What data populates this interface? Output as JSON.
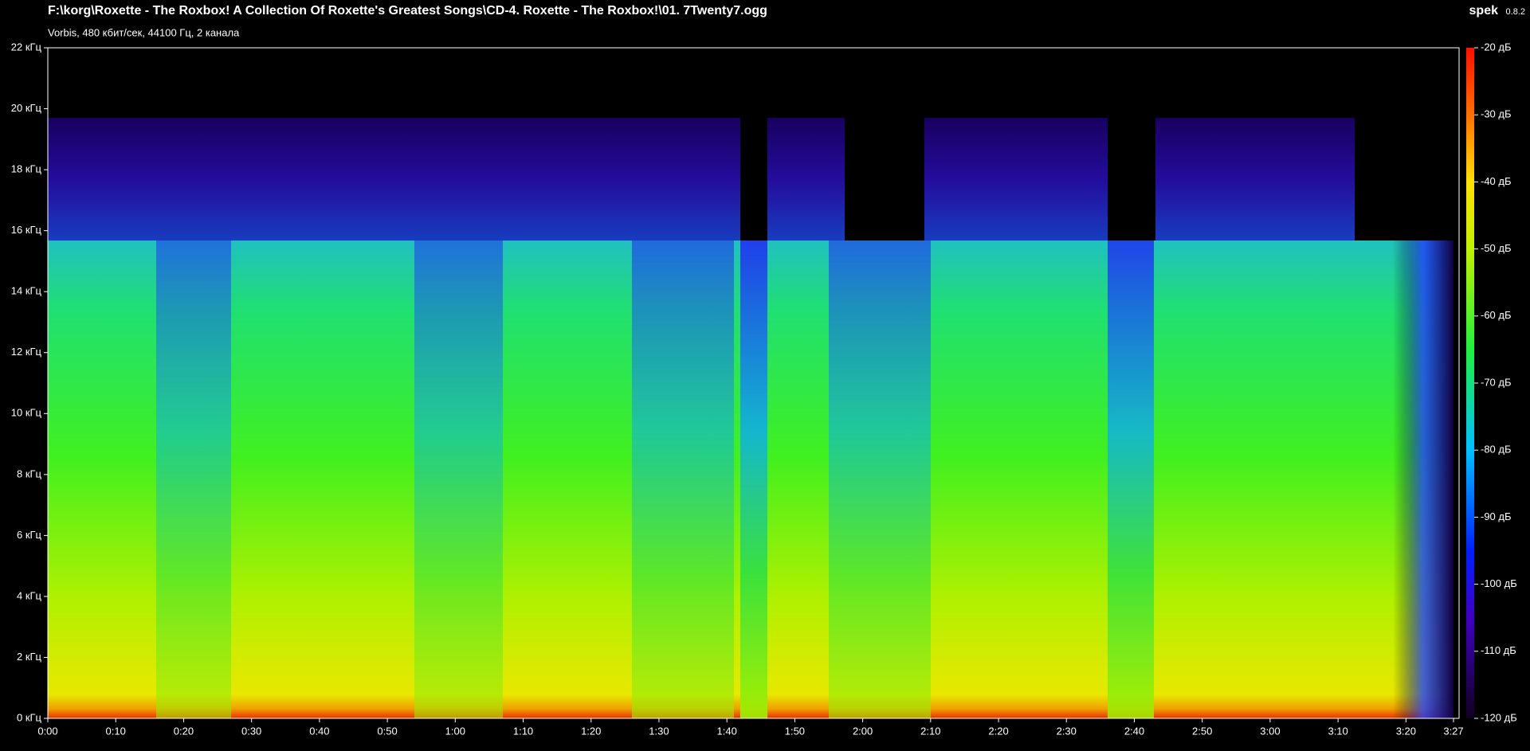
{
  "header": {
    "title": "F:\\korg\\Roxette - The Roxbox! A Collection Of Roxette's Greatest Songs\\CD-4. Roxette - The Roxbox!\\01. 7Twenty7.ogg",
    "subtitle": "Vorbis, 480 кбит/сек, 44100 Гц, 2 канала",
    "app": "spek",
    "version": "0.8.2"
  },
  "chart_data": {
    "type": "spectrogram",
    "xlim": [
      0,
      207
    ],
    "xticks": [
      {
        "value": 0,
        "label": "0:00"
      },
      {
        "value": 10,
        "label": "0:10"
      },
      {
        "value": 20,
        "label": "0:20"
      },
      {
        "value": 30,
        "label": "0:30"
      },
      {
        "value": 40,
        "label": "0:40"
      },
      {
        "value": 50,
        "label": "0:50"
      },
      {
        "value": 60,
        "label": "1:00"
      },
      {
        "value": 70,
        "label": "1:10"
      },
      {
        "value": 80,
        "label": "1:20"
      },
      {
        "value": 90,
        "label": "1:30"
      },
      {
        "value": 100,
        "label": "1:40"
      },
      {
        "value": 110,
        "label": "1:50"
      },
      {
        "value": 120,
        "label": "2:00"
      },
      {
        "value": 130,
        "label": "2:10"
      },
      {
        "value": 140,
        "label": "2:20"
      },
      {
        "value": 150,
        "label": "2:30"
      },
      {
        "value": 160,
        "label": "2:40"
      },
      {
        "value": 170,
        "label": "2:50"
      },
      {
        "value": 180,
        "label": "3:00"
      },
      {
        "value": 190,
        "label": "3:10"
      },
      {
        "value": 200,
        "label": "3:20"
      },
      {
        "value": 207,
        "label": "3:27"
      }
    ],
    "ylim": [
      0,
      22
    ],
    "yticks": [
      {
        "value": 0,
        "label": "0 кГц"
      },
      {
        "value": 2,
        "label": "2 кГц"
      },
      {
        "value": 4,
        "label": "4 кГц"
      },
      {
        "value": 6,
        "label": "6 кГц"
      },
      {
        "value": 8,
        "label": "8 кГц"
      },
      {
        "value": 10,
        "label": "10 кГц"
      },
      {
        "value": 12,
        "label": "12 кГц"
      },
      {
        "value": 14,
        "label": "14 кГц"
      },
      {
        "value": 16,
        "label": "16 кГц"
      },
      {
        "value": 18,
        "label": "18 кГц"
      },
      {
        "value": 20,
        "label": "20 кГц"
      },
      {
        "value": 22,
        "label": "22 кГц"
      }
    ],
    "zlim": [
      -120,
      -20
    ],
    "zticks": [
      {
        "value": -20,
        "label": "-20 дБ"
      },
      {
        "value": -30,
        "label": "-30 дБ"
      },
      {
        "value": -40,
        "label": "-40 дБ"
      },
      {
        "value": -50,
        "label": "-50 дБ"
      },
      {
        "value": -60,
        "label": "-60 дБ"
      },
      {
        "value": -70,
        "label": "-70 дБ"
      },
      {
        "value": -80,
        "label": "-80 дБ"
      },
      {
        "value": -90,
        "label": "-90 дБ"
      },
      {
        "value": -100,
        "label": "-100 дБ"
      },
      {
        "value": -110,
        "label": "-110 дБ"
      },
      {
        "value": -120,
        "label": "-120 дБ"
      }
    ]
  }
}
